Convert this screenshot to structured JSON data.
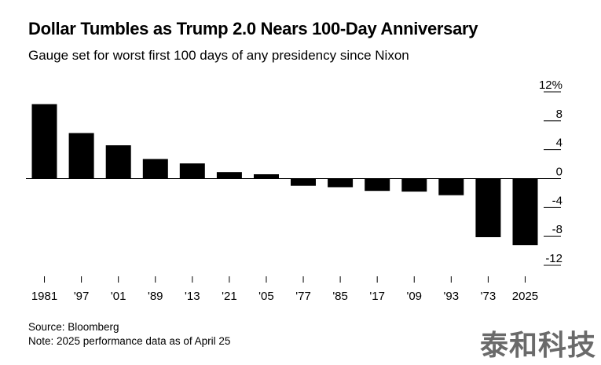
{
  "title": "Dollar Tumbles as Trump 2.0 Nears 100-Day Anniversary",
  "subtitle": "Gauge set for worst first 100 days of any presidency since Nixon",
  "source": "Source: Bloomberg",
  "note": "Note: 2025 performance data as of April 25",
  "watermark": "泰和科技",
  "chart_data": {
    "type": "bar",
    "categories": [
      "1981",
      "'97",
      "'01",
      "'89",
      "'13",
      "'21",
      "'05",
      "'77",
      "'85",
      "'17",
      "'09",
      "'93",
      "'73",
      "2025"
    ],
    "values": [
      10.3,
      6.3,
      4.6,
      2.7,
      2.1,
      0.9,
      0.6,
      -1.0,
      -1.2,
      -1.7,
      -1.8,
      -2.3,
      -8.1,
      -9.2
    ],
    "ylim": [
      -12,
      12
    ],
    "yticks": [
      12,
      8,
      4,
      0,
      -4,
      -8,
      -12
    ],
    "ytick_labels": [
      "12%",
      "8",
      "4",
      "0",
      "-4",
      "-8",
      "-12"
    ],
    "y_axis_position": "right",
    "grid": false,
    "bar_color": "#000000"
  }
}
